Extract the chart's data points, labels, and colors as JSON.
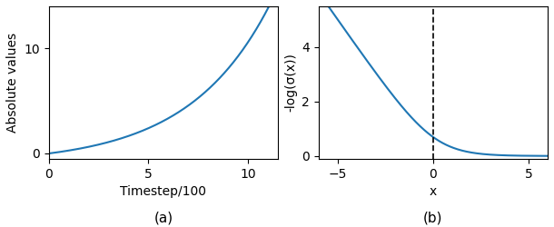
{
  "fig_width": 6.1,
  "fig_height": 2.5,
  "dpi": 100,
  "left_xlabel": "Timestep/100",
  "left_ylabel": "Absolute values",
  "left_caption": "(a)",
  "left_xlim": [
    0,
    11.5
  ],
  "left_ylim": [
    -0.5,
    14
  ],
  "left_xticks": [
    0,
    5,
    10
  ],
  "left_yticks": [
    0,
    10
  ],
  "right_xlabel": "x",
  "right_ylabel": "-log(σ(x))",
  "right_caption": "(b)",
  "right_xlim": [
    -6,
    6
  ],
  "right_ylim": [
    -0.1,
    5.5
  ],
  "right_xticks": [
    -5,
    0,
    5
  ],
  "right_yticks": [
    0,
    2,
    4
  ],
  "right_vline_x": 0,
  "line_color": "#1f77b4",
  "line_width": 1.5,
  "caption_fontsize": 11
}
